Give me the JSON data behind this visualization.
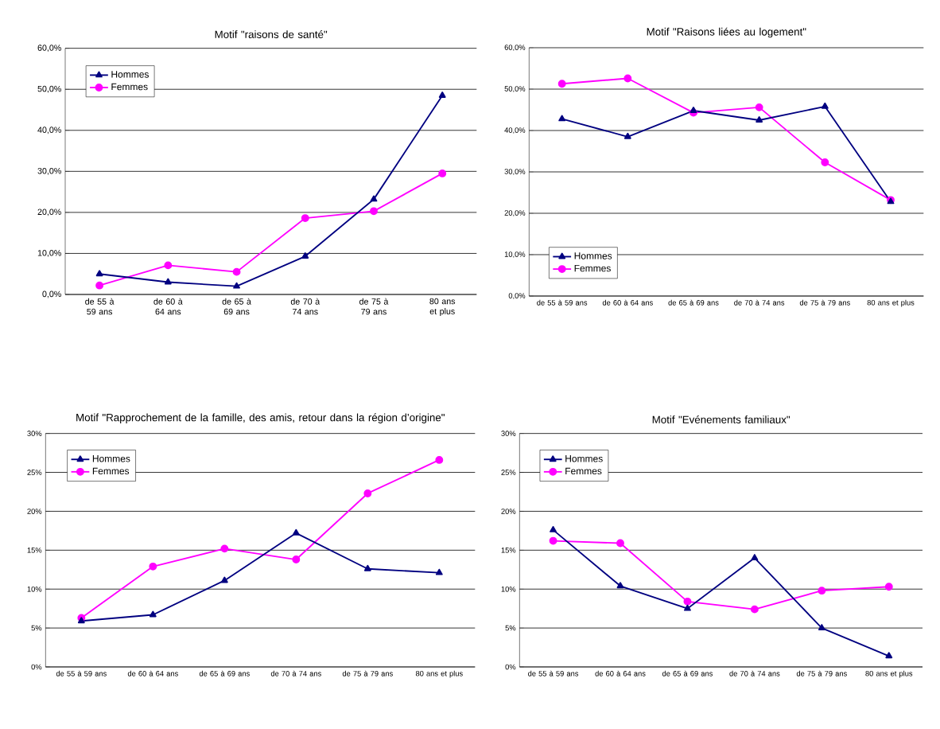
{
  "chart_data": [
    {
      "type": "line",
      "title": "Motif \"raisons de santé\"",
      "categories": [
        "de 55 à 59 ans",
        "de 60 à 64 ans",
        "de 65 à 69 ans",
        "de 70 à 74 ans",
        "de 75 à 79 ans",
        "80 ans et plus"
      ],
      "series": [
        {
          "name": "Hommes",
          "color": "#000080",
          "marker": "triangle",
          "values": [
            5.0,
            3.0,
            2.0,
            9.3,
            23.2,
            48.5
          ]
        },
        {
          "name": "Femmes",
          "color": "#ff00ff",
          "marker": "circle",
          "values": [
            2.2,
            7.1,
            5.5,
            18.6,
            20.3,
            29.5
          ]
        }
      ],
      "ylim": [
        0,
        60
      ],
      "yticks": [
        {
          "value": 0,
          "label": "0,0%"
        },
        {
          "value": 10,
          "label": "10,0%"
        },
        {
          "value": 20,
          "label": "20,0%"
        },
        {
          "value": 30,
          "label": "30,0%"
        },
        {
          "value": 40,
          "label": "40,0%"
        },
        {
          "value": 50,
          "label": "50,0%"
        },
        {
          "value": 60,
          "label": "60,0%"
        }
      ],
      "grid": "y",
      "legend": "top left"
    },
    {
      "type": "line",
      "title": "Motif \"Raisons liées au logement\"",
      "categories": [
        "de 55 à 59 ans",
        "de 60 à 64 ans",
        "de 65 à 69 ans",
        "de 70 à 74 ans",
        "de 75 à 79 ans",
        "80 ans et plus"
      ],
      "series": [
        {
          "name": "Hommes",
          "color": "#000080",
          "marker": "triangle",
          "values": [
            42.8,
            38.5,
            44.8,
            42.5,
            45.8,
            22.8
          ]
        },
        {
          "name": "Femmes",
          "color": "#ff00ff",
          "marker": "circle",
          "values": [
            51.3,
            52.6,
            44.3,
            45.6,
            32.3,
            23.2
          ]
        }
      ],
      "ylim": [
        0,
        60
      ],
      "yticks": [
        {
          "value": 0,
          "label": "0,0%"
        },
        {
          "value": 10,
          "label": "10,0%"
        },
        {
          "value": 20,
          "label": "20,0%"
        },
        {
          "value": 30,
          "label": "30,0%"
        },
        {
          "value": 40,
          "label": "40,0%"
        },
        {
          "value": 50,
          "label": "50,0%"
        },
        {
          "value": 60,
          "label": "60,0%"
        }
      ],
      "grid": "y",
      "legend": "bottom left"
    },
    {
      "type": "line",
      "title": "Motif \"Rapprochement de la famille, des amis, retour dans la région d’origine\"",
      "categories": [
        "de 55 à 59 ans",
        "de 60 à 64 ans",
        "de 65 à 69 ans",
        "de 70 à 74 ans",
        "de 75 à 79 ans",
        "80 ans et plus"
      ],
      "series": [
        {
          "name": "Hommes",
          "color": "#000080",
          "marker": "triangle",
          "values": [
            5.9,
            6.7,
            11.1,
            17.2,
            12.6,
            12.1
          ]
        },
        {
          "name": "Femmes",
          "color": "#ff00ff",
          "marker": "circle",
          "values": [
            6.3,
            12.9,
            15.2,
            13.8,
            22.3,
            26.6
          ]
        }
      ],
      "ylim": [
        0,
        30
      ],
      "yticks": [
        {
          "value": 0,
          "label": "0%"
        },
        {
          "value": 5,
          "label": "5%"
        },
        {
          "value": 10,
          "label": "10%"
        },
        {
          "value": 15,
          "label": "15%"
        },
        {
          "value": 20,
          "label": "20%"
        },
        {
          "value": 25,
          "label": "25%"
        },
        {
          "value": 30,
          "label": "30%"
        }
      ],
      "grid": "y",
      "legend": "top left"
    },
    {
      "type": "line",
      "title": "Motif \"Evénements familiaux\"",
      "categories": [
        "de 55 à 59 ans",
        "de 60 à 64 ans",
        "de 65 à 69 ans",
        "de 70 à 74 ans",
        "de 75 à 79 ans",
        "80 ans et plus"
      ],
      "series": [
        {
          "name": "Hommes",
          "color": "#000080",
          "marker": "triangle",
          "values": [
            17.6,
            10.4,
            7.5,
            14.0,
            5.0,
            1.4
          ]
        },
        {
          "name": "Femmes",
          "color": "#ff00ff",
          "marker": "circle",
          "values": [
            16.2,
            15.9,
            8.4,
            7.4,
            9.8,
            10.3
          ]
        }
      ],
      "ylim": [
        0,
        30
      ],
      "yticks": [
        {
          "value": 0,
          "label": "0%"
        },
        {
          "value": 5,
          "label": "5%"
        },
        {
          "value": 10,
          "label": "10%"
        },
        {
          "value": 15,
          "label": "15%"
        },
        {
          "value": 20,
          "label": "20%"
        },
        {
          "value": 25,
          "label": "25%"
        },
        {
          "value": 30,
          "label": "30%"
        }
      ],
      "grid": "y",
      "legend": "top left"
    }
  ]
}
